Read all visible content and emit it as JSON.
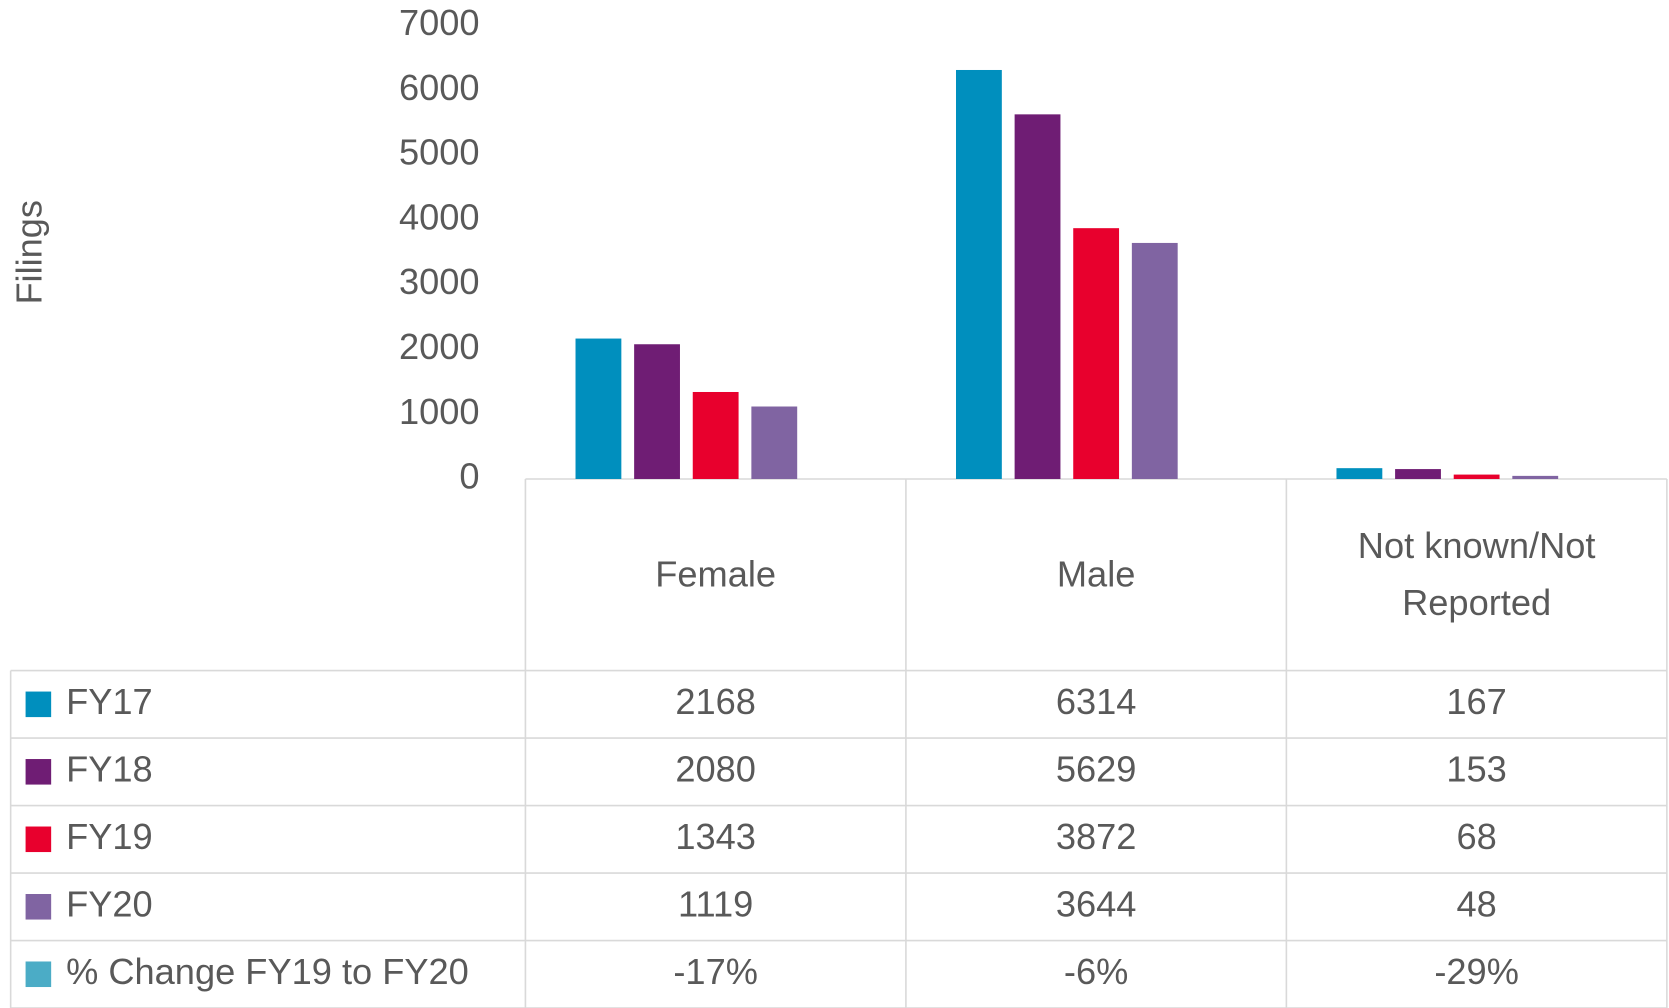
{
  "chart_data": {
    "type": "bar",
    "y_axis_label": "Filings",
    "categories": [
      "Female",
      "Male",
      "Not known/Not Reported"
    ],
    "series": [
      {
        "name": "FY17",
        "color": "#008fbe",
        "values": [
          2168,
          6314,
          167
        ]
      },
      {
        "name": "FY18",
        "color": "#6f1d74",
        "values": [
          2080,
          5629,
          153
        ]
      },
      {
        "name": "FY19",
        "color": "#e8002d",
        "values": [
          1343,
          3872,
          68
        ]
      },
      {
        "name": "FY20",
        "color": "#8064a2",
        "values": [
          1119,
          3644,
          48
        ]
      },
      {
        "name": "% Change FY19 to FY20",
        "color": "#4bacc6",
        "values": [
          -17,
          -6,
          -29
        ],
        "value_labels": [
          "-17%",
          "-6%",
          "-29%"
        ],
        "table_only": true
      }
    ],
    "ylim": [
      0,
      7000
    ],
    "yticks": [
      0,
      1000,
      2000,
      3000,
      4000,
      5000,
      6000,
      7000
    ],
    "grid": false
  }
}
